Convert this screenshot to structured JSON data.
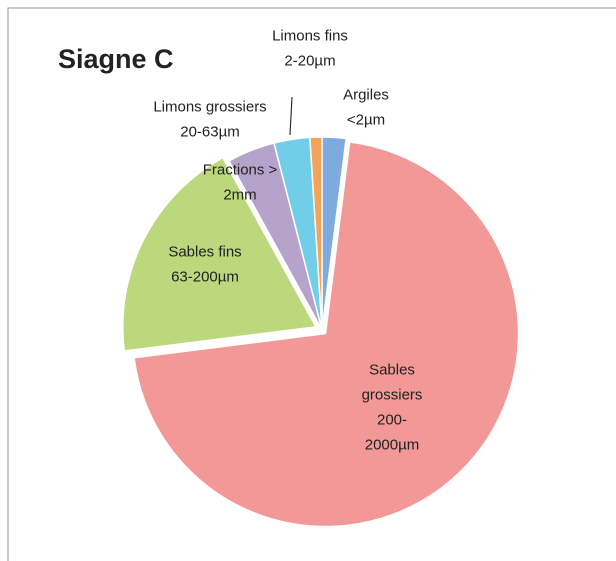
{
  "chart_data": {
    "type": "pie",
    "title": "Siagne C",
    "categories": [
      "Argiles\n<2µm",
      "Sables\ngrossiers\n200-\n2000µm",
      "Sables fins\n63-200µm",
      "Fractions >\n2mm",
      "Limons grossiers\n20-63µm",
      "Limons fins\n2-20µm"
    ],
    "values": [
      2,
      71,
      19,
      4,
      3,
      1
    ],
    "colors": [
      "#7eaae0",
      "#f29896",
      "#bcd87c",
      "#b5a3cc",
      "#72cde9",
      "#f3a45c"
    ]
  }
}
